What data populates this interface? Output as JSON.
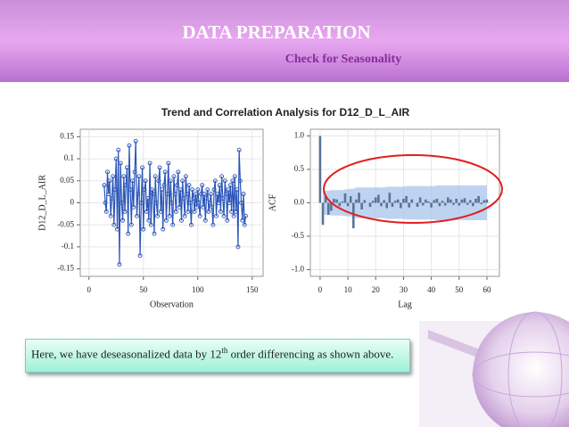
{
  "header": {
    "title": "DATA PREPARATION",
    "subtitle": "Check for Seasonality"
  },
  "caption": {
    "before": "Here, we have deseasonalized data by 12",
    "sup": "th",
    "after": " order differencing as shown above."
  },
  "figure_title": "Trend and Correlation Analysis for D12_D_L_AIR",
  "chart_data": [
    {
      "type": "line",
      "ylabel": "D12_D_L_AIR",
      "xlabel": "Observation",
      "color": "#2b55b8",
      "xlim": [
        -8,
        160
      ],
      "xticks": [
        0,
        50,
        100,
        150
      ],
      "ylim": [
        -0.167,
        0.167
      ],
      "yticks": [
        0.15,
        0.1,
        0.05,
        0.0,
        -0.05,
        -0.1,
        -0.15
      ],
      "x": [
        14,
        15,
        16,
        17,
        18,
        19,
        20,
        21,
        22,
        23,
        24,
        25,
        26,
        27,
        28,
        29,
        30,
        31,
        32,
        33,
        34,
        35,
        36,
        37,
        38,
        39,
        40,
        41,
        42,
        43,
        44,
        45,
        46,
        47,
        48,
        49,
        50,
        51,
        52,
        53,
        54,
        55,
        56,
        57,
        58,
        59,
        60,
        61,
        62,
        63,
        64,
        65,
        66,
        67,
        68,
        69,
        70,
        71,
        72,
        73,
        74,
        75,
        76,
        77,
        78,
        79,
        80,
        81,
        82,
        83,
        84,
        85,
        86,
        87,
        88,
        89,
        90,
        91,
        92,
        93,
        94,
        95,
        96,
        97,
        98,
        99,
        100,
        101,
        102,
        103,
        104,
        105,
        106,
        107,
        108,
        109,
        110,
        111,
        112,
        113,
        114,
        115,
        116,
        117,
        118,
        119,
        120,
        121,
        122,
        123,
        124,
        125,
        126,
        127,
        128,
        129,
        130,
        131,
        132,
        133,
        134,
        135,
        136,
        137,
        138,
        139,
        140,
        141,
        142,
        143,
        144
      ],
      "values": [
        0.04,
        0.0,
        -0.02,
        0.07,
        0.02,
        0.05,
        -0.03,
        0.01,
        0.06,
        -0.05,
        0.03,
        0.1,
        -0.06,
        0.12,
        -0.14,
        0.09,
        0.0,
        -0.04,
        0.06,
        -0.02,
        0.04,
        0.08,
        -0.07,
        0.13,
        0.03,
        -0.05,
        0.05,
        -0.01,
        0.07,
        0.14,
        -0.03,
        0.02,
        0.06,
        -0.12,
        0.0,
        0.08,
        -0.06,
        0.03,
        0.05,
        -0.02,
        0.01,
        -0.04,
        0.09,
        -0.05,
        0.03,
        0.02,
        -0.07,
        0.06,
        0.0,
        -0.03,
        0.05,
        0.08,
        -0.02,
        0.03,
        -0.06,
        0.04,
        0.07,
        -0.04,
        0.02,
        0.09,
        -0.03,
        0.05,
        0.0,
        -0.05,
        0.06,
        0.02,
        -0.02,
        0.04,
        0.07,
        -0.01,
        0.03,
        -0.04,
        0.05,
        0.01,
        -0.03,
        0.06,
        0.02,
        -0.02,
        0.04,
        0.0,
        -0.05,
        0.03,
        0.01,
        -0.02,
        0.02,
        -0.01,
        0.03,
        0.0,
        -0.03,
        0.02,
        0.04,
        -0.01,
        0.02,
        -0.04,
        0.01,
        0.03,
        -0.02,
        0.0,
        0.02,
        -0.01,
        -0.05,
        0.03,
        0.05,
        -0.03,
        0.02,
        0.0,
        0.04,
        -0.02,
        0.06,
        0.01,
        -0.03,
        0.05,
        0.02,
        -0.04,
        0.03,
        0.0,
        0.04,
        -0.02,
        0.05,
        -0.03,
        0.06,
        -0.02,
        0.03,
        -0.1,
        0.12,
        0.05,
        0.0,
        -0.04,
        0.02,
        -0.05,
        -0.03
      ]
    },
    {
      "type": "bar",
      "ylabel": "ACF",
      "xlabel": "Lag",
      "color": "#5a7399",
      "band_color": "#a8c4ea",
      "xlim": [
        -3.5,
        64.5
      ],
      "xticks": [
        0,
        10,
        20,
        30,
        40,
        50,
        60
      ],
      "ylim": [
        -1.1,
        1.1
      ],
      "yticks": [
        {
          "value": 1.0,
          "label": "1.0"
        },
        {
          "value": 0.5,
          "label": "0.5"
        },
        {
          "value": 0.0,
          "label": "0.0"
        },
        {
          "value": -0.5,
          "label": "-0.5"
        },
        {
          "value": -1.0,
          "label": "-1.0"
        }
      ],
      "x": [
        0,
        1,
        2,
        3,
        4,
        5,
        6,
        7,
        8,
        9,
        10,
        11,
        12,
        13,
        14,
        15,
        16,
        17,
        18,
        19,
        20,
        21,
        22,
        23,
        24,
        25,
        26,
        27,
        28,
        29,
        30,
        31,
        32,
        33,
        34,
        35,
        36,
        37,
        38,
        39,
        40,
        41,
        42,
        43,
        44,
        45,
        46,
        47,
        48,
        49,
        50,
        51,
        52,
        53,
        54,
        55,
        56,
        57,
        58,
        59,
        60
      ],
      "values": [
        1.0,
        -0.33,
        0.1,
        -0.18,
        -0.12,
        0.06,
        0.05,
        -0.05,
        0.02,
        0.14,
        -0.05,
        0.1,
        -0.38,
        0.05,
        0.15,
        -0.1,
        0.04,
        0.0,
        -0.06,
        0.03,
        0.08,
        0.12,
        -0.05,
        0.04,
        -0.08,
        0.15,
        -0.06,
        0.03,
        0.05,
        -0.08,
        0.06,
        0.1,
        -0.07,
        0.05,
        0.0,
        -0.06,
        0.08,
        -0.04,
        0.05,
        0.02,
        -0.07,
        0.04,
        0.06,
        -0.05,
        0.03,
        -0.04,
        0.08,
        0.05,
        -0.03,
        0.06,
        -0.04,
        0.05,
        0.07,
        -0.03,
        0.04,
        -0.05,
        0.06,
        0.1,
        -0.02,
        0.04,
        0.05
      ],
      "band_upper": [
        null,
        0.17,
        0.18,
        0.18,
        0.19,
        0.19,
        0.19,
        0.19,
        0.19,
        0.2,
        0.2,
        0.21,
        0.21,
        0.23,
        0.23,
        0.23,
        0.23,
        0.23,
        0.23,
        0.23,
        0.23,
        0.23,
        0.23,
        0.23,
        0.24,
        0.24,
        0.24,
        0.24,
        0.24,
        0.24,
        0.24,
        0.25,
        0.25,
        0.25,
        0.25,
        0.25,
        0.25,
        0.25,
        0.25,
        0.25,
        0.25,
        0.25,
        0.26,
        0.26,
        0.26,
        0.26,
        0.26,
        0.26,
        0.26,
        0.26,
        0.26,
        0.26,
        0.26,
        0.26,
        0.26,
        0.26,
        0.26,
        0.26,
        0.26,
        0.26,
        0.26
      ],
      "band_lower": [
        null,
        -0.17,
        -0.18,
        -0.18,
        -0.19,
        -0.19,
        -0.19,
        -0.19,
        -0.19,
        -0.2,
        -0.2,
        -0.21,
        -0.21,
        -0.23,
        -0.23,
        -0.23,
        -0.23,
        -0.23,
        -0.23,
        -0.23,
        -0.23,
        -0.23,
        -0.23,
        -0.23,
        -0.24,
        -0.24,
        -0.24,
        -0.24,
        -0.24,
        -0.24,
        -0.24,
        -0.25,
        -0.25,
        -0.25,
        -0.25,
        -0.25,
        -0.25,
        -0.25,
        -0.25,
        -0.25,
        -0.25,
        -0.25,
        -0.26,
        -0.26,
        -0.26,
        -0.26,
        -0.26,
        -0.26,
        -0.26,
        -0.26,
        -0.26,
        -0.26,
        -0.26,
        -0.26,
        -0.26,
        -0.26,
        -0.26,
        -0.26,
        -0.26,
        -0.26,
        -0.26
      ]
    }
  ]
}
